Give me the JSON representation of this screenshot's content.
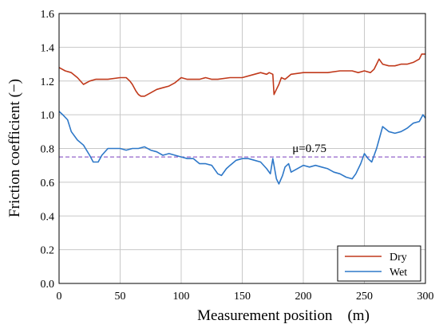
{
  "chart_data": {
    "type": "line",
    "xlabel": "Measurement position　(m)",
    "ylabel": "Friction coefficient (−)",
    "xlim": [
      0,
      300
    ],
    "ylim": [
      0,
      1.6
    ],
    "xticks": [
      0,
      50,
      100,
      150,
      200,
      250,
      300
    ],
    "yticks": [
      "0.0",
      "0.2",
      "0.4",
      "0.6",
      "0.8",
      "1.0",
      "1.2",
      "1.4",
      "1.6"
    ],
    "grid": true,
    "legend": {
      "position": "bottom-right"
    },
    "reference_line": {
      "y": 0.75,
      "label": "μ=0.75",
      "label_x": 205,
      "color": "#7b3fbf"
    },
    "series": [
      {
        "name": "Dry",
        "color": "#c0391b",
        "x": [
          0,
          5,
          10,
          15,
          20,
          25,
          30,
          40,
          50,
          55,
          58,
          60,
          63,
          65,
          67,
          70,
          75,
          80,
          85,
          90,
          95,
          100,
          105,
          110,
          115,
          120,
          125,
          130,
          140,
          150,
          160,
          165,
          170,
          172,
          175,
          176,
          178,
          180,
          182,
          185,
          190,
          200,
          210,
          220,
          230,
          240,
          245,
          250,
          255,
          258,
          260,
          262,
          265,
          270,
          275,
          280,
          285,
          290,
          295,
          297,
          300
        ],
        "y": [
          1.28,
          1.26,
          1.25,
          1.22,
          1.18,
          1.2,
          1.21,
          1.21,
          1.22,
          1.22,
          1.2,
          1.18,
          1.14,
          1.12,
          1.11,
          1.11,
          1.13,
          1.15,
          1.16,
          1.17,
          1.19,
          1.22,
          1.21,
          1.21,
          1.21,
          1.22,
          1.21,
          1.21,
          1.22,
          1.22,
          1.24,
          1.25,
          1.24,
          1.25,
          1.24,
          1.12,
          1.15,
          1.18,
          1.22,
          1.21,
          1.24,
          1.25,
          1.25,
          1.25,
          1.26,
          1.26,
          1.25,
          1.26,
          1.25,
          1.27,
          1.3,
          1.33,
          1.3,
          1.29,
          1.29,
          1.3,
          1.3,
          1.31,
          1.33,
          1.36,
          1.36
        ]
      },
      {
        "name": "Wet",
        "color": "#2e78c8",
        "x": [
          0,
          3,
          7,
          10,
          15,
          20,
          25,
          28,
          32,
          35,
          40,
          45,
          50,
          55,
          60,
          65,
          70,
          75,
          80,
          85,
          90,
          95,
          100,
          105,
          110,
          115,
          120,
          125,
          130,
          133,
          137,
          140,
          145,
          150,
          155,
          160,
          165,
          170,
          173,
          175,
          178,
          180,
          183,
          185,
          188,
          190,
          195,
          200,
          205,
          210,
          215,
          220,
          225,
          230,
          235,
          240,
          243,
          247,
          250,
          253,
          256,
          260,
          265,
          270,
          275,
          280,
          285,
          290,
          295,
          298,
          300
        ],
        "y": [
          1.02,
          1.0,
          0.97,
          0.9,
          0.85,
          0.82,
          0.76,
          0.72,
          0.72,
          0.76,
          0.8,
          0.8,
          0.8,
          0.79,
          0.8,
          0.8,
          0.81,
          0.79,
          0.78,
          0.76,
          0.77,
          0.76,
          0.75,
          0.74,
          0.74,
          0.71,
          0.71,
          0.7,
          0.65,
          0.64,
          0.68,
          0.7,
          0.73,
          0.74,
          0.74,
          0.73,
          0.72,
          0.68,
          0.65,
          0.74,
          0.62,
          0.59,
          0.64,
          0.69,
          0.71,
          0.66,
          0.68,
          0.7,
          0.69,
          0.7,
          0.69,
          0.68,
          0.66,
          0.65,
          0.63,
          0.62,
          0.65,
          0.71,
          0.77,
          0.74,
          0.72,
          0.8,
          0.93,
          0.9,
          0.89,
          0.9,
          0.92,
          0.95,
          0.96,
          1.0,
          0.98
        ]
      }
    ]
  }
}
